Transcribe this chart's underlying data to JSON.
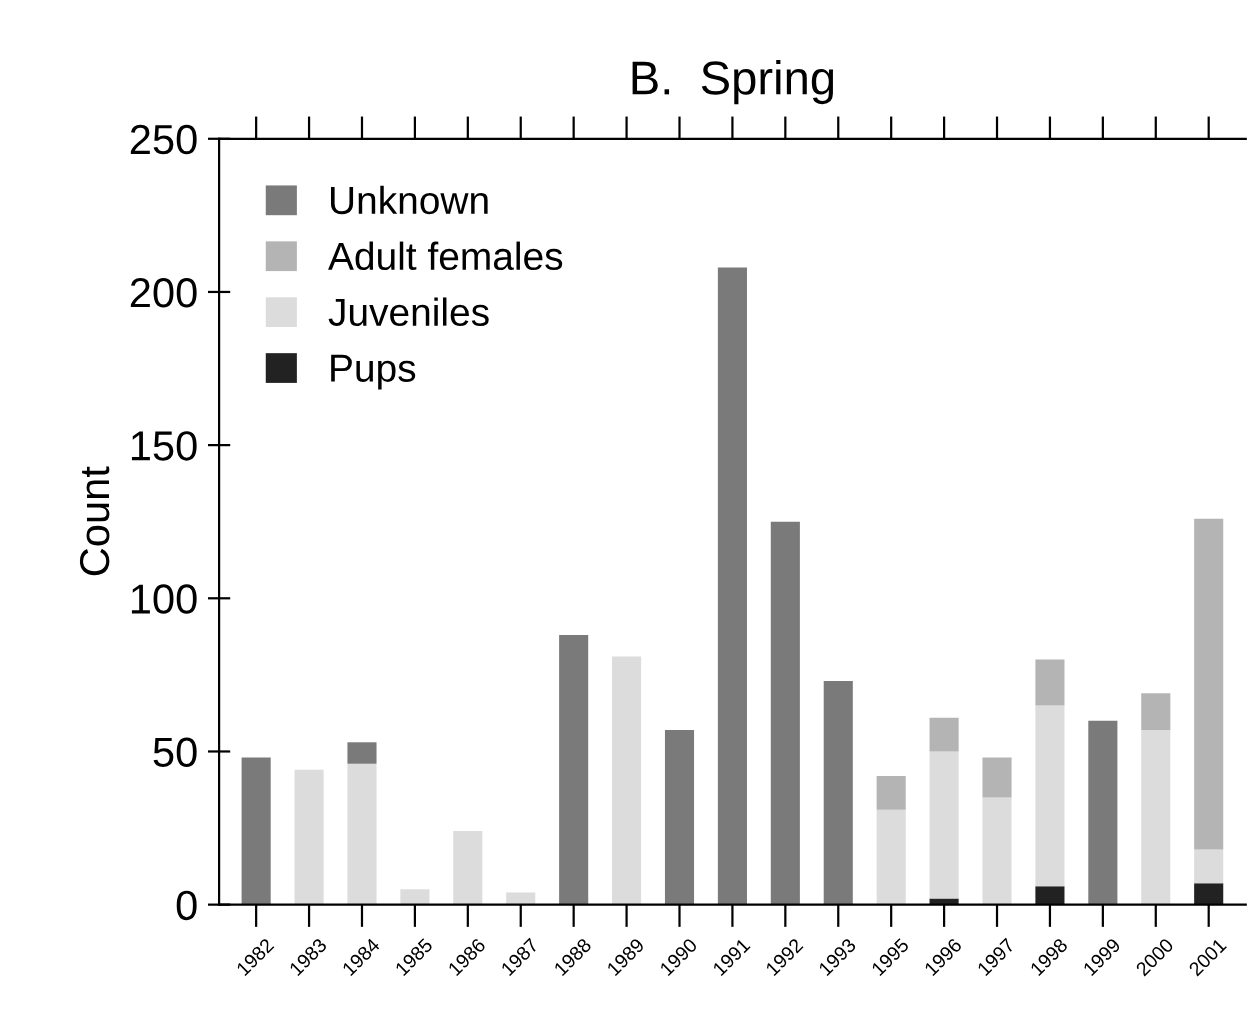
{
  "chart_data": {
    "type": "bar",
    "title": "B.  Spring",
    "ylabel": "Count",
    "stacked": true,
    "categories": [
      "1982",
      "1983",
      "1984",
      "1985",
      "1986",
      "1987",
      "1988",
      "1989",
      "1990",
      "1991",
      "1992",
      "1993",
      "1995",
      "1996",
      "1997",
      "1998",
      "1999",
      "2000",
      "2001"
    ],
    "series": [
      {
        "name": "Pups",
        "color": "#222222",
        "values": [
          0,
          0,
          0,
          0,
          0,
          0,
          0,
          0,
          0,
          0,
          0,
          0,
          0,
          2,
          0,
          6,
          0,
          0,
          7
        ]
      },
      {
        "name": "Juveniles",
        "color": "#dcdcdc",
        "values": [
          0,
          44,
          46,
          5,
          24,
          4,
          0,
          81,
          0,
          0,
          0,
          0,
          31,
          48,
          35,
          59,
          0,
          57,
          11
        ]
      },
      {
        "name": "Adult females",
        "color": "#b4b4b4",
        "values": [
          0,
          0,
          0,
          0,
          0,
          0,
          0,
          0,
          0,
          0,
          0,
          0,
          11,
          11,
          13,
          15,
          0,
          12,
          108
        ]
      },
      {
        "name": "Unknown",
        "color": "#7a7a7a",
        "values": [
          48,
          0,
          7,
          0,
          0,
          0,
          88,
          0,
          57,
          208,
          125,
          73,
          0,
          0,
          0,
          0,
          60,
          0,
          0
        ]
      }
    ],
    "ylim": [
      0,
      250
    ],
    "yticks": [
      0,
      50,
      100,
      150,
      200,
      250
    ],
    "grid": false,
    "legend": "top left"
  }
}
